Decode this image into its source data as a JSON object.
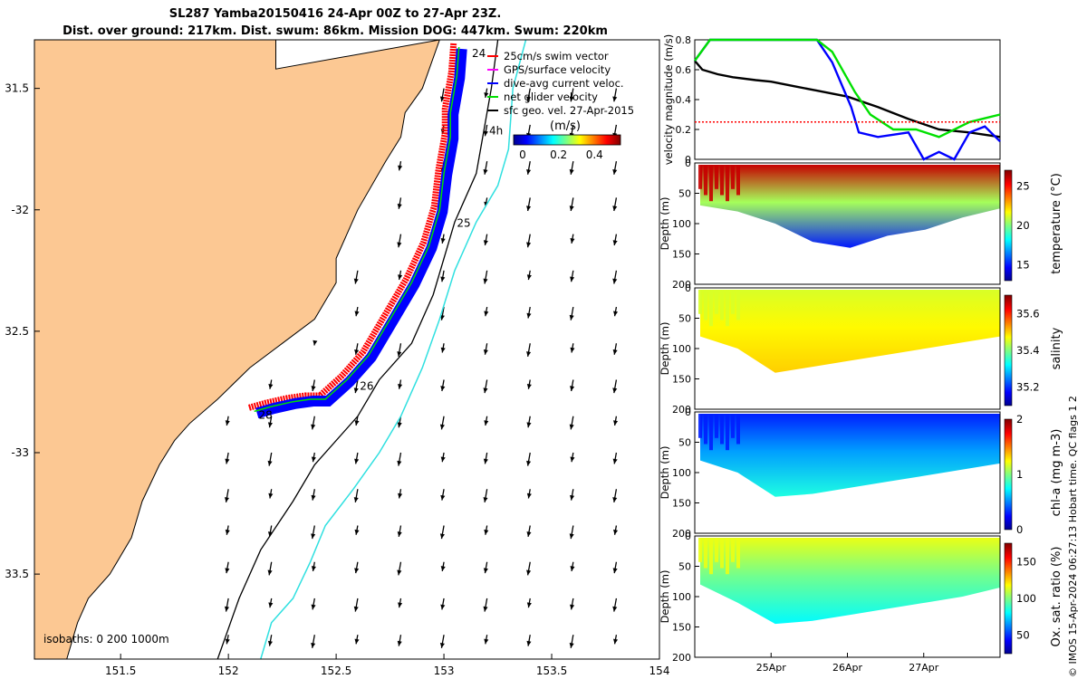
{
  "header": {
    "title_line1": "SL287 Yamba20150416 24-Apr 00Z to 27-Apr 23Z.",
    "title_line2": "Dist. over ground: 217km. Dist. swum: 86km. Mission DOG: 447km. Swum: 220km"
  },
  "credit": "© IMOS 15-Apr-2024 06:27:13 Hobart time. QC flags 1  2",
  "colors": {
    "land": "#fcc893",
    "swim_vector": "#ff0000",
    "gps_velocity": "#ff00ff",
    "dive_avg": "#0000ff",
    "net_velocity": "#00e000",
    "sfc_geo": "#000000",
    "isobath_200": "#000000",
    "isobath_1000": "#30e0e0"
  },
  "chart_data": [
    {
      "type": "map",
      "xlim": [
        151.1,
        154.0
      ],
      "ylim": [
        -33.85,
        -31.3
      ],
      "xticks": [
        151.5,
        152,
        152.5,
        153,
        153.5,
        154
      ],
      "xtick_labels": [
        "151.5",
        "152",
        "152.5",
        "153",
        "153.5",
        "154"
      ],
      "yticks": [
        -31.5,
        -32,
        -32.5,
        -33,
        -33.5
      ],
      "ytick_labels": [
        "31.5",
        "-32",
        "32.5",
        "-33",
        "33.5"
      ],
      "legend": {
        "position": "top-right",
        "entries": [
          {
            "label": "25cm/s swim vector",
            "color": "#ff0000"
          },
          {
            "label": "GPS/surface velocity",
            "color": "#ff00ff"
          },
          {
            "label": "dive-avg current veloc.",
            "color": "#0000ff"
          },
          {
            "label": "net glider velocity",
            "color": "#00e000"
          },
          {
            "label": "sfc geo. vel. 27-Apr-2015",
            "color": "#000000"
          }
        ]
      },
      "colorbar": {
        "title": "(m/s)",
        "ticks": [
          "0",
          "0.2",
          "0.4"
        ],
        "range": [
          0,
          0.5
        ]
      },
      "isobath_label": "isobaths: 0   200  1000m",
      "day_labels": [
        {
          "text": "24",
          "lon": 153.13,
          "lat": -31.37
        },
        {
          "text": "4h",
          "lon": 153.21,
          "lat": -31.69
        },
        {
          "text": "25",
          "lon": 153.06,
          "lat": -32.07
        },
        {
          "text": "26",
          "lon": 152.61,
          "lat": -32.74
        },
        {
          "text": "28",
          "lon": 152.14,
          "lat": -32.86
        }
      ],
      "coastline": [
        [
          152.05,
          -31.3
        ],
        [
          152.22,
          -31.3
        ],
        [
          152.22,
          -31.42
        ],
        [
          152.98,
          -31.3
        ],
        [
          152.9,
          -31.5
        ],
        [
          152.82,
          -31.6
        ],
        [
          152.8,
          -31.7
        ],
        [
          152.73,
          -31.8
        ],
        [
          152.6,
          -32.0
        ],
        [
          152.55,
          -32.1
        ],
        [
          152.5,
          -32.2
        ],
        [
          152.5,
          -32.3
        ],
        [
          152.4,
          -32.45
        ],
        [
          152.25,
          -32.55
        ],
        [
          152.1,
          -32.65
        ],
        [
          151.95,
          -32.78
        ],
        [
          151.82,
          -32.88
        ],
        [
          151.75,
          -32.95
        ],
        [
          151.68,
          -33.05
        ],
        [
          151.6,
          -33.2
        ],
        [
          151.55,
          -33.35
        ],
        [
          151.45,
          -33.5
        ],
        [
          151.35,
          -33.6
        ],
        [
          151.3,
          -33.7
        ],
        [
          151.25,
          -33.85
        ],
        [
          151.1,
          -33.85
        ],
        [
          151.1,
          -31.3
        ]
      ],
      "isobath_200": [
        [
          153.25,
          -31.3
        ],
        [
          153.22,
          -31.5
        ],
        [
          153.15,
          -31.85
        ],
        [
          153.05,
          -32.05
        ],
        [
          152.95,
          -32.35
        ],
        [
          152.85,
          -32.55
        ],
        [
          152.7,
          -32.7
        ],
        [
          152.6,
          -32.85
        ],
        [
          152.4,
          -33.05
        ],
        [
          152.3,
          -33.2
        ],
        [
          152.15,
          -33.4
        ],
        [
          152.05,
          -33.6
        ],
        [
          151.95,
          -33.85
        ]
      ],
      "isobath_1000": [
        [
          153.38,
          -31.3
        ],
        [
          153.32,
          -31.5
        ],
        [
          153.3,
          -31.75
        ],
        [
          153.25,
          -31.9
        ],
        [
          153.15,
          -32.05
        ],
        [
          153.05,
          -32.25
        ],
        [
          152.98,
          -32.45
        ],
        [
          152.9,
          -32.65
        ],
        [
          152.8,
          -32.85
        ],
        [
          152.7,
          -33.0
        ],
        [
          152.58,
          -33.15
        ],
        [
          152.45,
          -33.3
        ],
        [
          152.38,
          -33.45
        ],
        [
          152.3,
          -33.6
        ],
        [
          152.2,
          -33.7
        ],
        [
          152.15,
          -33.85
        ]
      ],
      "glider_track": [
        [
          153.07,
          -31.33
        ],
        [
          153.06,
          -31.45
        ],
        [
          153.03,
          -31.6
        ],
        [
          153.03,
          -31.7
        ],
        [
          153.0,
          -31.85
        ],
        [
          152.98,
          -32.0
        ],
        [
          152.93,
          -32.15
        ],
        [
          152.85,
          -32.3
        ],
        [
          152.75,
          -32.45
        ],
        [
          152.65,
          -32.6
        ],
        [
          152.55,
          -32.7
        ],
        [
          152.45,
          -32.78
        ],
        [
          152.38,
          -32.78
        ],
        [
          152.3,
          -32.79
        ],
        [
          152.2,
          -32.81
        ],
        [
          152.12,
          -32.83
        ]
      ],
      "sfc_geo_vectors": {
        "lon": [
          152.0,
          152.2,
          152.4,
          152.6,
          152.8,
          153.0,
          153.2,
          153.4,
          153.6,
          153.8
        ],
        "lat": [
          -31.5,
          -31.65,
          -31.8,
          -31.95,
          -32.1,
          -32.25,
          -32.4,
          -32.55,
          -32.7,
          -32.85,
          -33.0,
          -33.15,
          -33.3,
          -33.45,
          -33.6,
          -33.75
        ],
        "u_m_s": -0.05,
        "v_m_s": -0.55
      }
    },
    {
      "type": "line",
      "ylabel": "velocity magnitude (m/s)",
      "ylim": [
        0,
        0.8
      ],
      "yticks": [
        "0",
        "0.2",
        "0.4",
        "0.6",
        "0.8"
      ],
      "xlim_days": [
        24.0,
        28.0
      ],
      "series": [
        {
          "color": "#000000",
          "x": [
            24.0,
            24.1,
            24.3,
            24.5,
            24.8,
            25.0,
            25.3,
            25.6,
            26.0,
            26.4,
            26.8,
            27.2,
            27.6,
            28.0
          ],
          "y": [
            0.66,
            0.6,
            0.57,
            0.55,
            0.53,
            0.52,
            0.49,
            0.46,
            0.42,
            0.35,
            0.27,
            0.2,
            0.18,
            0.15
          ]
        },
        {
          "color": "#0000ff",
          "x": [
            24.0,
            24.2,
            24.3,
            25.6,
            25.8,
            26.05,
            26.15,
            26.4,
            26.8,
            27.0,
            27.2,
            27.4,
            27.6,
            27.8,
            28.0
          ],
          "y": [
            0.66,
            0.8,
            0.8,
            0.8,
            0.65,
            0.35,
            0.18,
            0.15,
            0.18,
            0.0,
            0.05,
            0.0,
            0.18,
            0.22,
            0.12
          ]
        },
        {
          "color": "#00e000",
          "x": [
            24.0,
            24.2,
            24.3,
            25.6,
            25.8,
            26.1,
            26.3,
            26.6,
            26.9,
            27.2,
            27.6,
            28.0
          ],
          "y": [
            0.66,
            0.8,
            0.8,
            0.8,
            0.72,
            0.45,
            0.3,
            0.2,
            0.2,
            0.15,
            0.25,
            0.3
          ]
        },
        {
          "color": "#ff0000",
          "x": [
            24.0,
            28.0
          ],
          "y": [
            0.25,
            0.25
          ]
        }
      ]
    },
    {
      "type": "heatmap",
      "variable": "temperature",
      "colorbar_label": "temperature (°C)",
      "colorbar_range": [
        13,
        27
      ],
      "colorbar_ticks": [
        "15",
        "20",
        "25"
      ],
      "ylabel": "Depth (m)",
      "yticks": [
        "0",
        "50",
        "100",
        "150",
        "200"
      ],
      "profile_bottom_depth_m": [
        70,
        80,
        100,
        130,
        140,
        120,
        110,
        90,
        75
      ],
      "surface_value": 26,
      "deep_value": 15
    },
    {
      "type": "heatmap",
      "variable": "salinity",
      "colorbar_label": "salinity",
      "colorbar_range": [
        35.1,
        35.7
      ],
      "colorbar_ticks": [
        "35.2",
        "35.4",
        "35.6"
      ],
      "ylabel": "Depth (m)",
      "yticks": [
        "0",
        "50",
        "100",
        "150",
        "200"
      ],
      "profile_bottom_depth_m": [
        80,
        100,
        140,
        130,
        120,
        110,
        100,
        90,
        80
      ],
      "surface_value": 35.45,
      "deep_value": 35.5
    },
    {
      "type": "heatmap",
      "variable": "chl-a",
      "colorbar_label": "chl-a (mg m-3)",
      "colorbar_range": [
        0,
        2
      ],
      "colorbar_ticks": [
        "0",
        "1",
        "2"
      ],
      "ylabel": "Depth (m)",
      "yticks": [
        "0",
        "50",
        "100",
        "150",
        "200"
      ],
      "profile_bottom_depth_m": [
        80,
        100,
        140,
        135,
        125,
        115,
        105,
        95,
        85
      ],
      "surface_value": 0.3,
      "deep_value": 0.8
    },
    {
      "type": "heatmap",
      "variable": "oxygen",
      "colorbar_label": "Ox. sat. ratio (%)",
      "colorbar_range": [
        25,
        175
      ],
      "colorbar_ticks": [
        "50",
        "100",
        "150"
      ],
      "ylabel": "Depth (m)",
      "yticks": [
        "0",
        "50",
        "100",
        "150",
        "200"
      ],
      "xticks_days": [
        25,
        26,
        27
      ],
      "xtick_labels": [
        "25Apr",
        "26Apr",
        "27Apr"
      ],
      "profile_bottom_depth_m": [
        80,
        110,
        145,
        140,
        130,
        120,
        110,
        100,
        85
      ],
      "surface_value": 115,
      "deep_value": 80
    }
  ]
}
